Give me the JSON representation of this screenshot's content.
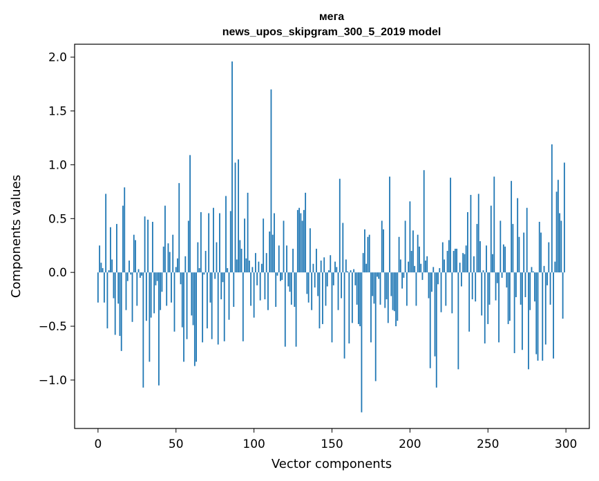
{
  "chart_data": {
    "type": "bar",
    "title": "мега",
    "subtitle": "news_upos_skipgram_300_5_2019 model",
    "xlabel": "Vector components",
    "ylabel": "Components values",
    "xlim": [
      -15,
      315
    ],
    "ylim": [
      -1.45,
      2.12
    ],
    "xticks": [
      0,
      50,
      100,
      150,
      200,
      250,
      300
    ],
    "xtick_labels": [
      "0",
      "50",
      "100",
      "150",
      "200",
      "250",
      "300"
    ],
    "yticks": [
      -1.0,
      -0.5,
      0.0,
      0.5,
      1.0,
      1.5,
      2.0
    ],
    "ytick_labels": [
      "−1.0",
      "−0.5",
      "0.0",
      "0.5",
      "1.0",
      "1.5",
      "2.0"
    ],
    "grid": false,
    "legend": "none",
    "bar_color": "#1f77b4",
    "values": [
      -0.28,
      0.25,
      0.09,
      0.04,
      -0.28,
      0.73,
      -0.52,
      0.02,
      0.42,
      0.12,
      -0.24,
      -0.58,
      0.45,
      -0.29,
      -0.59,
      -0.73,
      0.62,
      0.79,
      -0.35,
      -0.08,
      0.11,
      -0.02,
      -0.46,
      0.35,
      0.3,
      -0.31,
      0.03,
      -0.05,
      -0.03,
      -1.07,
      0.52,
      -0.45,
      0.49,
      -0.83,
      -0.42,
      0.47,
      -0.38,
      -0.12,
      -0.08,
      -1.05,
      -0.35,
      -0.18,
      0.24,
      0.62,
      -0.31,
      0.27,
      0.19,
      -0.28,
      0.35,
      -0.55,
      0.05,
      0.13,
      0.83,
      -0.11,
      -0.51,
      -0.83,
      0.15,
      -0.62,
      0.48,
      1.09,
      -0.4,
      -0.49,
      -0.87,
      -0.83,
      0.28,
      0.04,
      0.56,
      -0.65,
      -0.02,
      0.2,
      -0.52,
      0.55,
      -0.28,
      -0.62,
      0.6,
      -0.06,
      0.28,
      -0.67,
      0.55,
      -0.25,
      -0.09,
      -0.64,
      0.71,
      0.04,
      -0.44,
      0.57,
      1.96,
      -0.32,
      1.02,
      0.12,
      1.05,
      0.3,
      0.22,
      -0.64,
      0.5,
      0.13,
      0.74,
      0.11,
      -0.31,
      0.05,
      -0.42,
      0.18,
      -0.12,
      0.1,
      -0.26,
      0.08,
      0.5,
      -0.25,
      0.18,
      -0.35,
      0.38,
      1.7,
      0.35,
      0.55,
      -0.32,
      -0.03,
      0.25,
      -0.08,
      -0.07,
      0.48,
      -0.69,
      0.25,
      -0.13,
      -0.18,
      -0.3,
      0.22,
      -0.32,
      -0.69,
      0.58,
      0.6,
      0.55,
      0.48,
      0.58,
      0.74,
      -0.2,
      -0.28,
      0.41,
      -0.35,
      0.08,
      -0.14,
      0.22,
      -0.22,
      -0.52,
      0.11,
      -0.48,
      0.14,
      -0.31,
      -0.13,
      0.02,
      0.16,
      -0.65,
      -0.12,
      0.1,
      0.05,
      -0.35,
      0.87,
      -0.24,
      0.46,
      -0.8,
      0.12,
      0.01,
      -0.66,
      0.02,
      -0.47,
      0.03,
      -0.12,
      -0.3,
      -0.48,
      -0.5,
      -1.3,
      0.18,
      0.4,
      0.08,
      0.33,
      0.35,
      -0.65,
      -0.22,
      -0.29,
      -1.01,
      -0.04,
      -0.06,
      -0.3,
      0.48,
      0.4,
      -0.33,
      -0.25,
      -0.47,
      0.89,
      -0.22,
      -0.35,
      -0.36,
      -0.5,
      -0.45,
      0.33,
      0.12,
      -0.15,
      -0.05,
      0.48,
      -0.31,
      0.1,
      0.66,
      0.2,
      0.39,
      0.06,
      -0.31,
      0.35,
      0.24,
      0.08,
      -0.07,
      0.95,
      0.11,
      0.15,
      -0.24,
      -0.89,
      -0.18,
      0.05,
      -0.78,
      -1.07,
      -0.11,
      0.04,
      -0.37,
      0.28,
      0.12,
      -0.31,
      0.2,
      0.3,
      0.88,
      -0.38,
      0.2,
      0.22,
      0.22,
      -0.9,
      0.09,
      -0.13,
      0.18,
      0.17,
      0.25,
      0.56,
      -0.55,
      0.72,
      -0.25,
      0.15,
      -0.27,
      0.45,
      0.73,
      0.29,
      -0.4,
      0.02,
      -0.66,
      0.25,
      -0.48,
      -0.3,
      0.62,
      0.17,
      0.89,
      -0.26,
      -0.1,
      -0.65,
      0.48,
      -0.05,
      0.26,
      0.24,
      -0.14,
      -0.48,
      -0.45,
      0.85,
      0.45,
      -0.75,
      -0.23,
      0.69,
      0.33,
      -0.3,
      -0.72,
      0.37,
      -0.23,
      0.6,
      -0.9,
      -0.35,
      0.05,
      0.01,
      -0.27,
      -0.76,
      -0.82,
      0.47,
      0.37,
      -0.82,
      0.06,
      -0.67,
      -0.12,
      0.28,
      -0.3,
      1.19,
      -0.8,
      0.1,
      0.75,
      0.86,
      0.55,
      0.48,
      -0.43,
      1.02
    ]
  }
}
